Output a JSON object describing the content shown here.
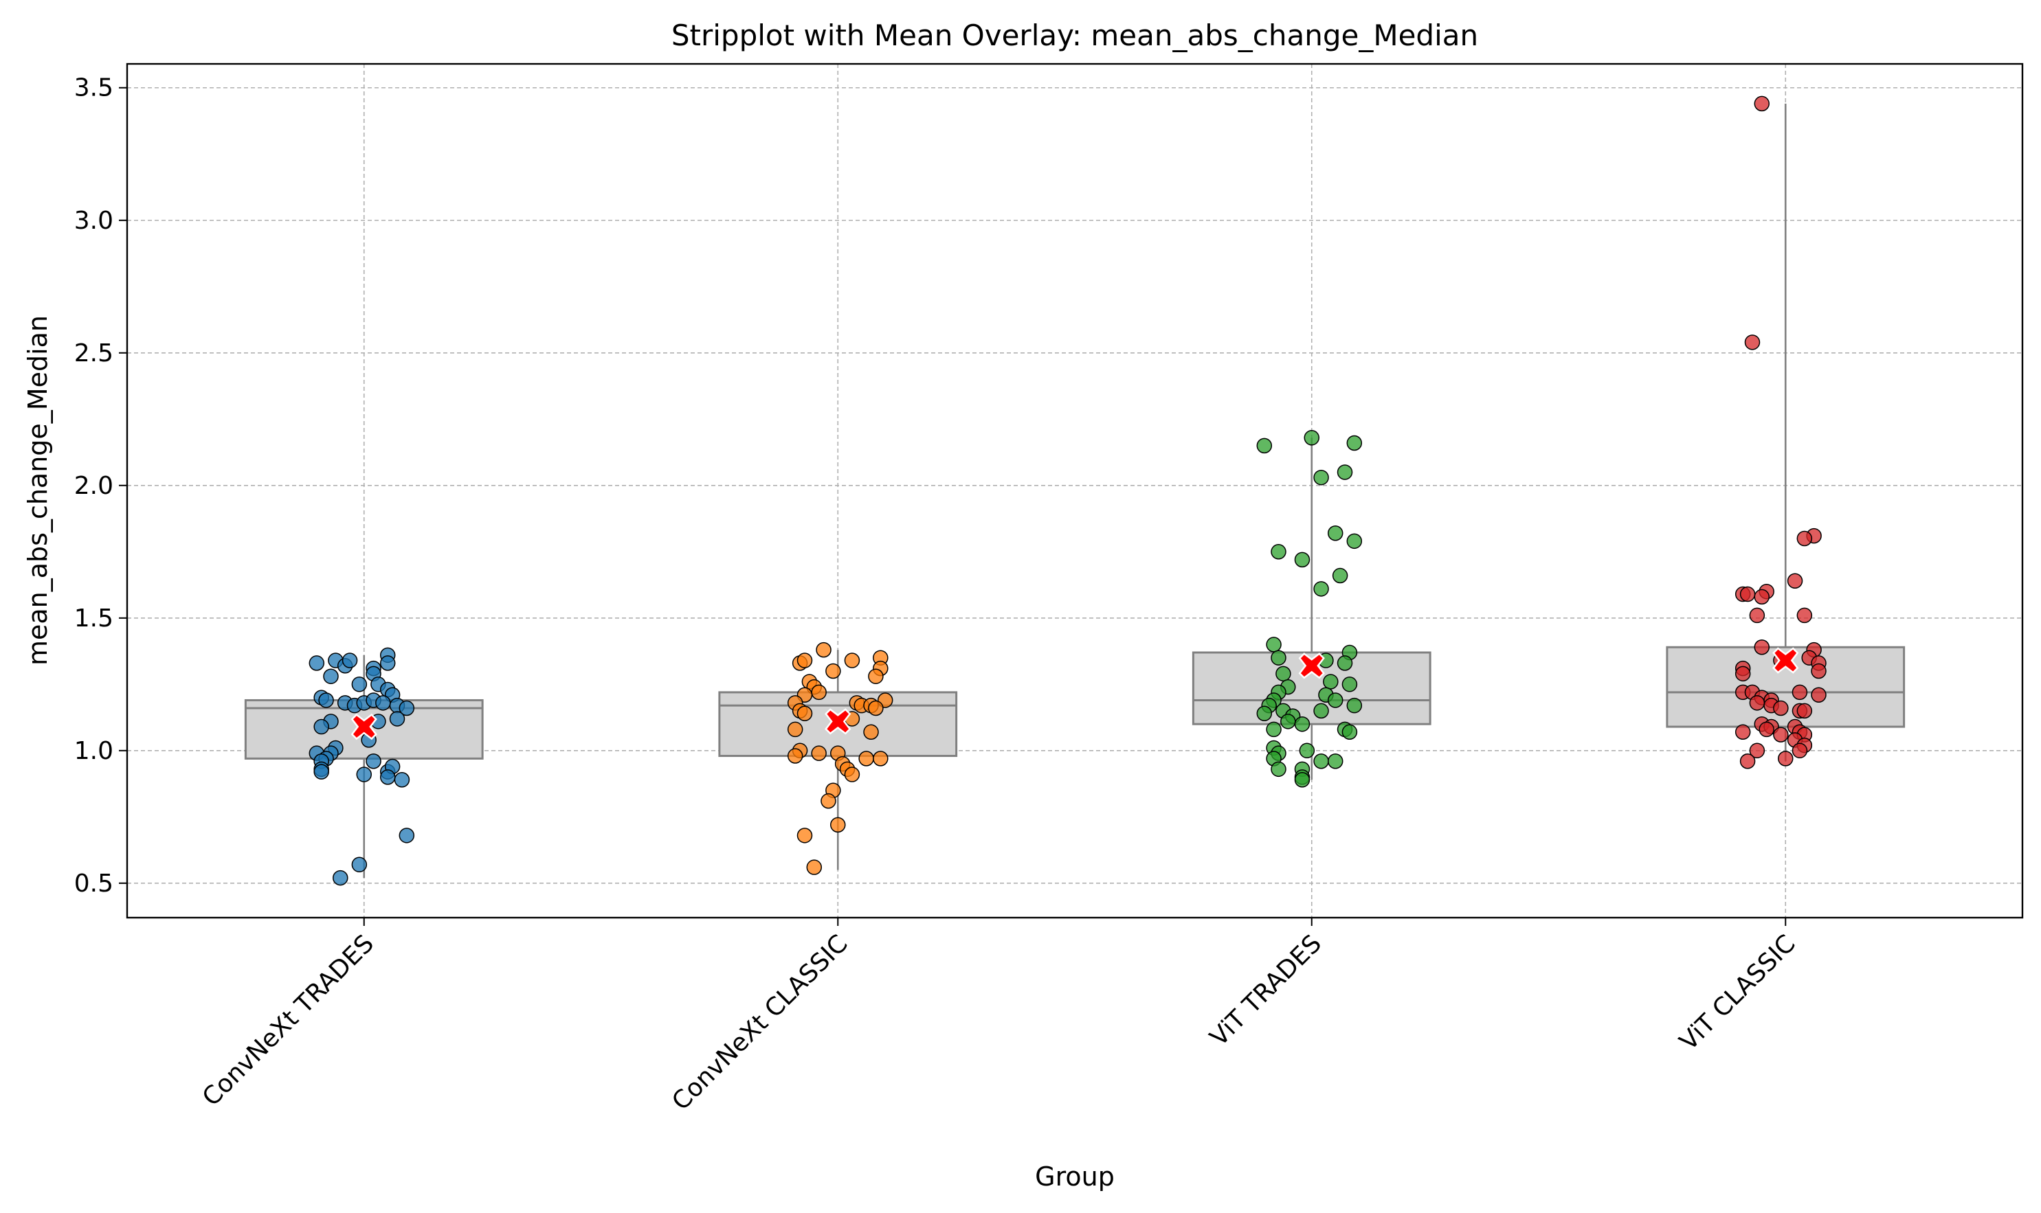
{
  "chart_data": {
    "type": "stripplot-box",
    "title": "Stripplot with Mean Overlay: mean_abs_change_Median",
    "xlabel": "Group",
    "ylabel": "mean_abs_change_Median",
    "ylim": [
      0.37,
      3.59
    ],
    "yticks": [
      "0.5",
      "1.0",
      "1.5",
      "2.0",
      "2.5",
      "3.0",
      "3.5"
    ],
    "grid": true,
    "box_color": "#d3d3d3",
    "box_edge_color": "#808080",
    "mean_marker_color": "#ff0000",
    "categories": [
      "ConvNeXt TRADES",
      "ConvNeXt CLASSIC",
      "ViT TRADES",
      "ViT CLASSIC"
    ],
    "series": [
      {
        "color": "#1f77b4",
        "box": {
          "q1": 0.97,
          "median": 1.16,
          "q3": 1.19,
          "whisker_low": 0.52,
          "whisker_high": 1.36
        },
        "mean": 1.09,
        "points": [
          {
            "x": -0.1,
            "y": 1.33
          },
          {
            "x": -0.06,
            "y": 1.34
          },
          {
            "x": -0.04,
            "y": 1.32
          },
          {
            "x": -0.03,
            "y": 1.34
          },
          {
            "x": 0.05,
            "y": 1.36
          },
          {
            "x": 0.02,
            "y": 1.31
          },
          {
            "x": 0.05,
            "y": 1.33
          },
          {
            "x": -0.07,
            "y": 1.28
          },
          {
            "x": -0.01,
            "y": 1.25
          },
          {
            "x": 0.02,
            "y": 1.29
          },
          {
            "x": 0.03,
            "y": 1.25
          },
          {
            "x": 0.05,
            "y": 1.23
          },
          {
            "x": 0.06,
            "y": 1.21
          },
          {
            "x": -0.09,
            "y": 1.2
          },
          {
            "x": -0.08,
            "y": 1.19
          },
          {
            "x": -0.04,
            "y": 1.18
          },
          {
            "x": -0.02,
            "y": 1.17
          },
          {
            "x": 0.0,
            "y": 1.18
          },
          {
            "x": 0.02,
            "y": 1.19
          },
          {
            "x": 0.04,
            "y": 1.18
          },
          {
            "x": 0.07,
            "y": 1.17
          },
          {
            "x": 0.09,
            "y": 1.16
          },
          {
            "x": 0.07,
            "y": 1.12
          },
          {
            "x": -0.07,
            "y": 1.11
          },
          {
            "x": -0.09,
            "y": 1.09
          },
          {
            "x": 0.03,
            "y": 1.11
          },
          {
            "x": 0.01,
            "y": 1.04
          },
          {
            "x": -0.06,
            "y": 1.01
          },
          {
            "x": -0.07,
            "y": 0.99
          },
          {
            "x": -0.1,
            "y": 0.99
          },
          {
            "x": -0.08,
            "y": 0.97
          },
          {
            "x": -0.09,
            "y": 0.96
          },
          {
            "x": 0.02,
            "y": 0.96
          },
          {
            "x": -0.09,
            "y": 0.93
          },
          {
            "x": -0.09,
            "y": 0.92
          },
          {
            "x": 0.05,
            "y": 0.92
          },
          {
            "x": 0.06,
            "y": 0.94
          },
          {
            "x": 0.05,
            "y": 0.9
          },
          {
            "x": 0.08,
            "y": 0.89
          },
          {
            "x": 0.0,
            "y": 0.91
          },
          {
            "x": 0.09,
            "y": 0.68
          },
          {
            "x": -0.01,
            "y": 0.57
          },
          {
            "x": -0.05,
            "y": 0.52
          }
        ]
      },
      {
        "color": "#ff7f0e",
        "box": {
          "q1": 0.98,
          "median": 1.17,
          "q3": 1.22,
          "whisker_low": 0.55,
          "whisker_high": 1.38
        },
        "mean": 1.11,
        "points": [
          {
            "x": -0.03,
            "y": 1.38
          },
          {
            "x": 0.09,
            "y": 1.35
          },
          {
            "x": 0.03,
            "y": 1.34
          },
          {
            "x": -0.08,
            "y": 1.33
          },
          {
            "x": -0.07,
            "y": 1.34
          },
          {
            "x": 0.09,
            "y": 1.31
          },
          {
            "x": -0.01,
            "y": 1.3
          },
          {
            "x": 0.08,
            "y": 1.28
          },
          {
            "x": -0.06,
            "y": 1.26
          },
          {
            "x": -0.05,
            "y": 1.24
          },
          {
            "x": -0.04,
            "y": 1.22
          },
          {
            "x": -0.07,
            "y": 1.21
          },
          {
            "x": 0.1,
            "y": 1.19
          },
          {
            "x": -0.09,
            "y": 1.18
          },
          {
            "x": 0.04,
            "y": 1.18
          },
          {
            "x": 0.05,
            "y": 1.17
          },
          {
            "x": 0.07,
            "y": 1.17
          },
          {
            "x": 0.08,
            "y": 1.16
          },
          {
            "x": -0.08,
            "y": 1.15
          },
          {
            "x": -0.07,
            "y": 1.14
          },
          {
            "x": 0.03,
            "y": 1.12
          },
          {
            "x": -0.09,
            "y": 1.08
          },
          {
            "x": 0.07,
            "y": 1.07
          },
          {
            "x": -0.08,
            "y": 1.0
          },
          {
            "x": -0.04,
            "y": 0.99
          },
          {
            "x": -0.09,
            "y": 0.98
          },
          {
            "x": 0.0,
            "y": 0.99
          },
          {
            "x": 0.06,
            "y": 0.97
          },
          {
            "x": 0.09,
            "y": 0.97
          },
          {
            "x": 0.01,
            "y": 0.95
          },
          {
            "x": 0.02,
            "y": 0.93
          },
          {
            "x": 0.03,
            "y": 0.91
          },
          {
            "x": -0.01,
            "y": 0.85
          },
          {
            "x": -0.02,
            "y": 0.81
          },
          {
            "x": 0.0,
            "y": 0.72
          },
          {
            "x": -0.07,
            "y": 0.68
          },
          {
            "x": -0.05,
            "y": 0.56
          }
        ]
      },
      {
        "color": "#2ca02c",
        "box": {
          "q1": 1.1,
          "median": 1.19,
          "q3": 1.37,
          "whisker_low": 0.89,
          "whisker_high": 2.18
        },
        "mean": 1.32,
        "points": [
          {
            "x": 0.0,
            "y": 2.18
          },
          {
            "x": 0.09,
            "y": 2.16
          },
          {
            "x": -0.1,
            "y": 2.15
          },
          {
            "x": 0.07,
            "y": 2.05
          },
          {
            "x": 0.02,
            "y": 2.03
          },
          {
            "x": 0.05,
            "y": 1.82
          },
          {
            "x": 0.09,
            "y": 1.79
          },
          {
            "x": -0.07,
            "y": 1.75
          },
          {
            "x": -0.02,
            "y": 1.72
          },
          {
            "x": 0.06,
            "y": 1.66
          },
          {
            "x": 0.02,
            "y": 1.61
          },
          {
            "x": -0.08,
            "y": 1.4
          },
          {
            "x": 0.08,
            "y": 1.37
          },
          {
            "x": -0.07,
            "y": 1.35
          },
          {
            "x": 0.03,
            "y": 1.34
          },
          {
            "x": 0.07,
            "y": 1.33
          },
          {
            "x": -0.06,
            "y": 1.29
          },
          {
            "x": 0.04,
            "y": 1.26
          },
          {
            "x": 0.08,
            "y": 1.25
          },
          {
            "x": -0.05,
            "y": 1.24
          },
          {
            "x": -0.07,
            "y": 1.22
          },
          {
            "x": 0.03,
            "y": 1.21
          },
          {
            "x": 0.05,
            "y": 1.19
          },
          {
            "x": -0.08,
            "y": 1.19
          },
          {
            "x": -0.09,
            "y": 1.17
          },
          {
            "x": 0.09,
            "y": 1.17
          },
          {
            "x": -0.06,
            "y": 1.15
          },
          {
            "x": 0.02,
            "y": 1.15
          },
          {
            "x": -0.1,
            "y": 1.14
          },
          {
            "x": -0.04,
            "y": 1.13
          },
          {
            "x": -0.05,
            "y": 1.11
          },
          {
            "x": -0.02,
            "y": 1.1
          },
          {
            "x": -0.08,
            "y": 1.08
          },
          {
            "x": 0.07,
            "y": 1.08
          },
          {
            "x": 0.08,
            "y": 1.07
          },
          {
            "x": -0.08,
            "y": 1.01
          },
          {
            "x": -0.07,
            "y": 0.99
          },
          {
            "x": -0.01,
            "y": 1.0
          },
          {
            "x": -0.08,
            "y": 0.97
          },
          {
            "x": 0.02,
            "y": 0.96
          },
          {
            "x": 0.05,
            "y": 0.96
          },
          {
            "x": -0.07,
            "y": 0.93
          },
          {
            "x": -0.02,
            "y": 0.93
          },
          {
            "x": -0.02,
            "y": 0.9
          },
          {
            "x": -0.02,
            "y": 0.89
          }
        ]
      },
      {
        "color": "#d62728",
        "box": {
          "q1": 1.09,
          "median": 1.22,
          "q3": 1.39,
          "whisker_low": 0.96,
          "whisker_high": 3.44
        },
        "mean": 1.34,
        "points": [
          {
            "x": -0.05,
            "y": 3.44
          },
          {
            "x": -0.07,
            "y": 2.54
          },
          {
            "x": 0.06,
            "y": 1.81
          },
          {
            "x": 0.04,
            "y": 1.8
          },
          {
            "x": 0.02,
            "y": 1.64
          },
          {
            "x": -0.04,
            "y": 1.6
          },
          {
            "x": -0.09,
            "y": 1.59
          },
          {
            "x": -0.08,
            "y": 1.59
          },
          {
            "x": -0.05,
            "y": 1.58
          },
          {
            "x": -0.06,
            "y": 1.51
          },
          {
            "x": 0.04,
            "y": 1.51
          },
          {
            "x": -0.05,
            "y": 1.39
          },
          {
            "x": 0.06,
            "y": 1.38
          },
          {
            "x": 0.05,
            "y": 1.35
          },
          {
            "x": 0.07,
            "y": 1.33
          },
          {
            "x": -0.01,
            "y": 1.34
          },
          {
            "x": -0.09,
            "y": 1.31
          },
          {
            "x": -0.09,
            "y": 1.29
          },
          {
            "x": 0.07,
            "y": 1.3
          },
          {
            "x": -0.09,
            "y": 1.22
          },
          {
            "x": -0.07,
            "y": 1.22
          },
          {
            "x": 0.03,
            "y": 1.22
          },
          {
            "x": 0.07,
            "y": 1.21
          },
          {
            "x": -0.05,
            "y": 1.2
          },
          {
            "x": -0.03,
            "y": 1.19
          },
          {
            "x": -0.06,
            "y": 1.18
          },
          {
            "x": -0.03,
            "y": 1.17
          },
          {
            "x": -0.01,
            "y": 1.16
          },
          {
            "x": 0.03,
            "y": 1.15
          },
          {
            "x": 0.04,
            "y": 1.15
          },
          {
            "x": -0.05,
            "y": 1.1
          },
          {
            "x": -0.03,
            "y": 1.09
          },
          {
            "x": 0.02,
            "y": 1.09
          },
          {
            "x": -0.09,
            "y": 1.07
          },
          {
            "x": -0.04,
            "y": 1.08
          },
          {
            "x": 0.03,
            "y": 1.07
          },
          {
            "x": 0.04,
            "y": 1.06
          },
          {
            "x": 0.02,
            "y": 1.04
          },
          {
            "x": -0.01,
            "y": 1.06
          },
          {
            "x": 0.04,
            "y": 1.02
          },
          {
            "x": 0.03,
            "y": 1.0
          },
          {
            "x": -0.06,
            "y": 1.0
          },
          {
            "x": 0.0,
            "y": 0.97
          },
          {
            "x": -0.08,
            "y": 0.96
          }
        ]
      }
    ]
  }
}
